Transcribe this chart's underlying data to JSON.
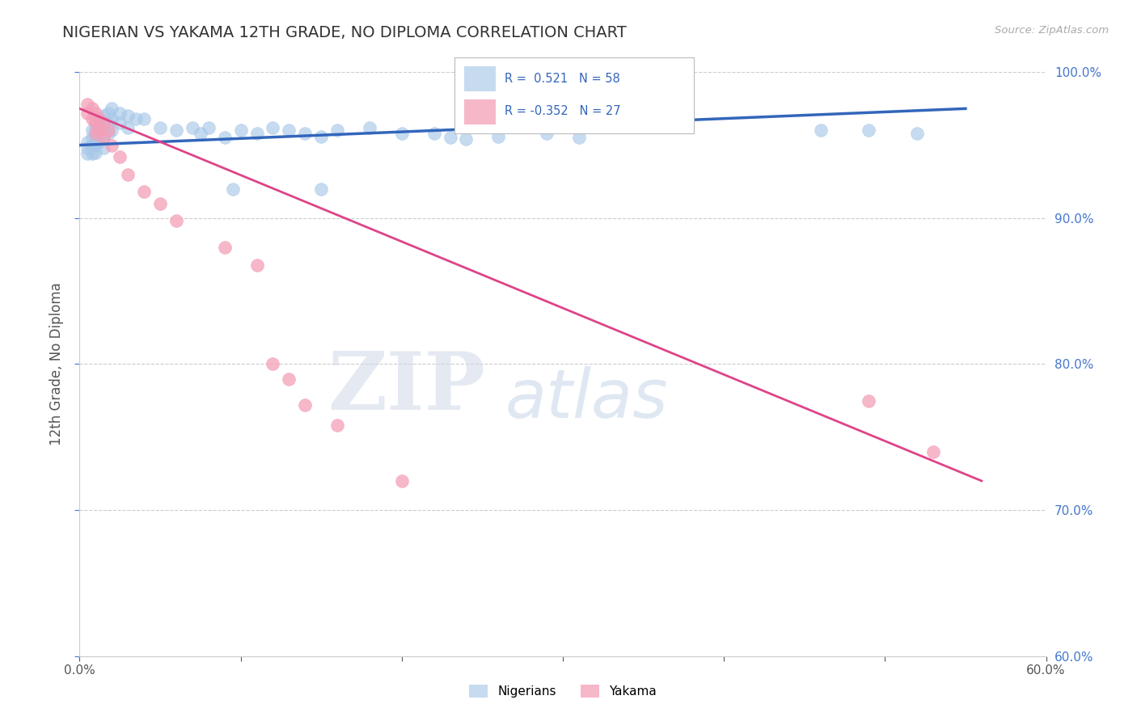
{
  "title": "NIGERIAN VS YAKAMA 12TH GRADE, NO DIPLOMA CORRELATION CHART",
  "source_text": "Source: ZipAtlas.com",
  "ylabel": "12th Grade, No Diploma",
  "xlim": [
    0.0,
    0.6
  ],
  "ylim": [
    0.6,
    1.0
  ],
  "yticks": [
    0.6,
    0.7,
    0.8,
    0.9,
    1.0
  ],
  "yticklabels": [
    "60.0%",
    "70.0%",
    "80.0%",
    "90.0%",
    "100.0%"
  ],
  "blue_color": "#a8c8e8",
  "pink_color": "#f4a0b8",
  "blue_line_color": "#3366bb",
  "pink_line_color": "#dd4488",
  "blue_scatter": [
    [
      0.005,
      0.952
    ],
    [
      0.005,
      0.948
    ],
    [
      0.005,
      0.944
    ],
    [
      0.008,
      0.96
    ],
    [
      0.008,
      0.955
    ],
    [
      0.008,
      0.95
    ],
    [
      0.008,
      0.944
    ],
    [
      0.01,
      0.965
    ],
    [
      0.01,
      0.96
    ],
    [
      0.01,
      0.955
    ],
    [
      0.01,
      0.95
    ],
    [
      0.01,
      0.945
    ],
    [
      0.012,
      0.968
    ],
    [
      0.012,
      0.962
    ],
    [
      0.012,
      0.957
    ],
    [
      0.012,
      0.952
    ],
    [
      0.015,
      0.97
    ],
    [
      0.015,
      0.965
    ],
    [
      0.015,
      0.96
    ],
    [
      0.015,
      0.955
    ],
    [
      0.015,
      0.948
    ],
    [
      0.018,
      0.972
    ],
    [
      0.018,
      0.965
    ],
    [
      0.018,
      0.958
    ],
    [
      0.02,
      0.975
    ],
    [
      0.02,
      0.968
    ],
    [
      0.02,
      0.96
    ],
    [
      0.025,
      0.972
    ],
    [
      0.025,
      0.965
    ],
    [
      0.03,
      0.97
    ],
    [
      0.03,
      0.962
    ],
    [
      0.035,
      0.968
    ],
    [
      0.04,
      0.968
    ],
    [
      0.05,
      0.962
    ],
    [
      0.06,
      0.96
    ],
    [
      0.07,
      0.962
    ],
    [
      0.075,
      0.958
    ],
    [
      0.08,
      0.962
    ],
    [
      0.09,
      0.955
    ],
    [
      0.1,
      0.96
    ],
    [
      0.11,
      0.958
    ],
    [
      0.12,
      0.962
    ],
    [
      0.13,
      0.96
    ],
    [
      0.14,
      0.958
    ],
    [
      0.15,
      0.956
    ],
    [
      0.16,
      0.96
    ],
    [
      0.18,
      0.962
    ],
    [
      0.2,
      0.958
    ],
    [
      0.22,
      0.958
    ],
    [
      0.24,
      0.954
    ],
    [
      0.26,
      0.956
    ],
    [
      0.29,
      0.958
    ],
    [
      0.31,
      0.955
    ],
    [
      0.095,
      0.92
    ],
    [
      0.15,
      0.92
    ],
    [
      0.23,
      0.955
    ],
    [
      0.46,
      0.96
    ],
    [
      0.49,
      0.96
    ],
    [
      0.52,
      0.958
    ]
  ],
  "pink_scatter": [
    [
      0.005,
      0.978
    ],
    [
      0.005,
      0.972
    ],
    [
      0.008,
      0.975
    ],
    [
      0.008,
      0.968
    ],
    [
      0.01,
      0.972
    ],
    [
      0.01,
      0.965
    ],
    [
      0.01,
      0.958
    ],
    [
      0.012,
      0.968
    ],
    [
      0.012,
      0.96
    ],
    [
      0.015,
      0.965
    ],
    [
      0.015,
      0.955
    ],
    [
      0.018,
      0.96
    ],
    [
      0.02,
      0.95
    ],
    [
      0.025,
      0.942
    ],
    [
      0.03,
      0.93
    ],
    [
      0.04,
      0.918
    ],
    [
      0.05,
      0.91
    ],
    [
      0.06,
      0.898
    ],
    [
      0.09,
      0.88
    ],
    [
      0.11,
      0.868
    ],
    [
      0.12,
      0.8
    ],
    [
      0.13,
      0.79
    ],
    [
      0.14,
      0.772
    ],
    [
      0.16,
      0.758
    ],
    [
      0.2,
      0.72
    ],
    [
      0.49,
      0.775
    ],
    [
      0.53,
      0.74
    ]
  ],
  "watermark_zip": "ZIP",
  "watermark_atlas": "atlas",
  "background_color": "#ffffff",
  "grid_color": "#cccccc"
}
